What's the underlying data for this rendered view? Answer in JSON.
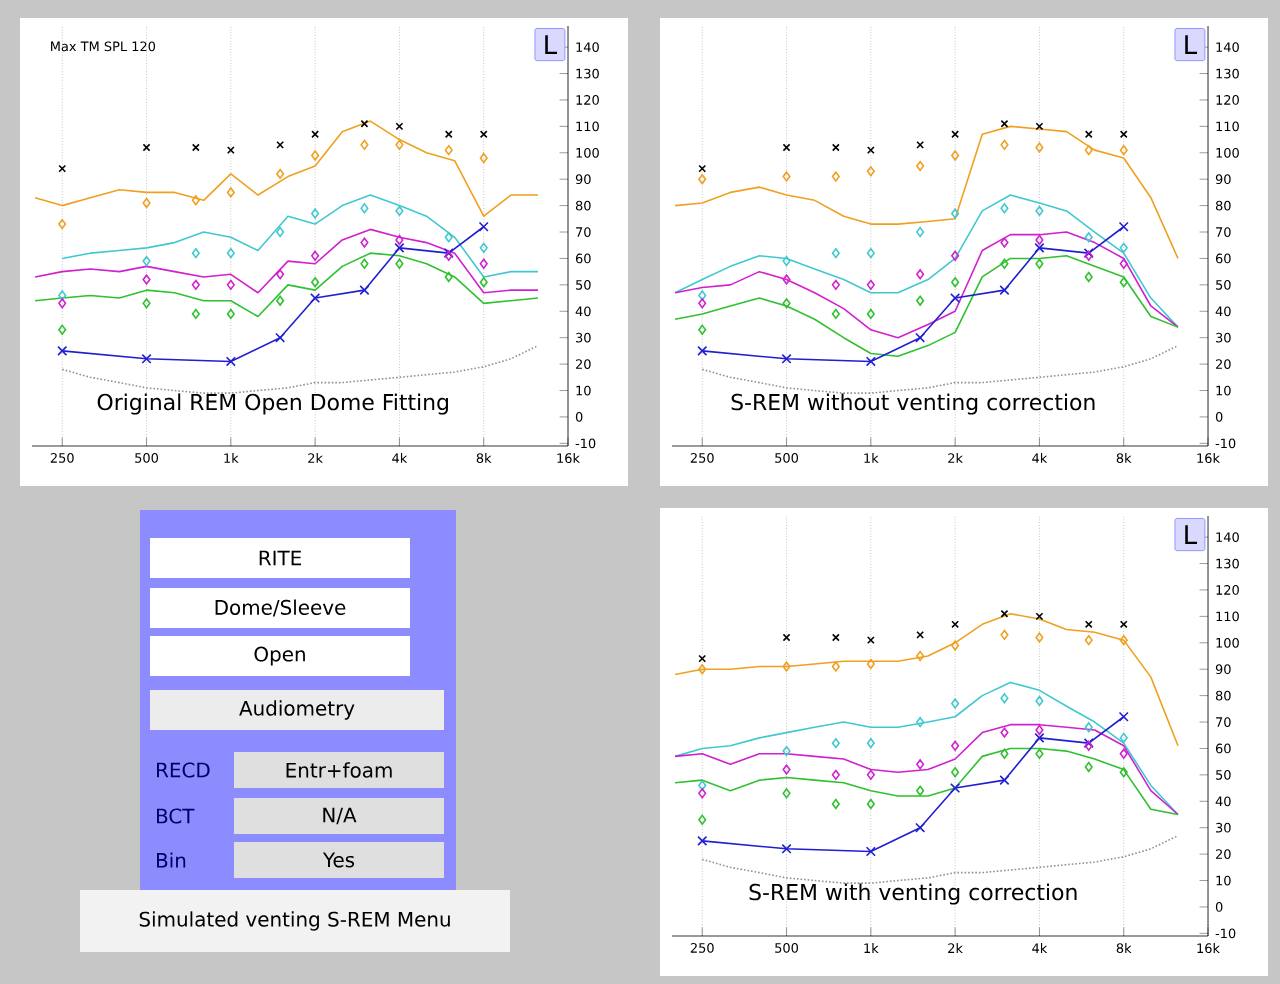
{
  "chart_data": [
    {
      "type": "line",
      "title": "Original REM Open Dome Fitting",
      "subtitle": "Max TM SPL 120",
      "annotations": [
        "L"
      ],
      "xlim": [
        195,
        16000
      ],
      "ylim": [
        -11,
        148
      ],
      "log": "x",
      "grid": "x",
      "xticks": [
        {
          "value": 250,
          "label": "250"
        },
        {
          "value": 500,
          "label": "500"
        },
        {
          "value": 1000,
          "label": "1k"
        },
        {
          "value": 2000,
          "label": "2k"
        },
        {
          "value": 4000,
          "label": "4k"
        },
        {
          "value": 8000,
          "label": "8k"
        },
        {
          "value": 16000,
          "label": "16k"
        }
      ],
      "yticks": [
        -10,
        0,
        10,
        20,
        30,
        40,
        50,
        60,
        70,
        80,
        90,
        100,
        110,
        120,
        130,
        140
      ],
      "x": [
        200,
        250,
        315,
        400,
        500,
        630,
        800,
        1000,
        1250,
        1600,
        2000,
        2500,
        3150,
        4000,
        5000,
        6300,
        8000,
        10000,
        12500
      ],
      "series": [
        {
          "color": "#909090",
          "line_style": "dotted",
          "x": [
            250,
            315,
            400,
            500,
            630,
            800,
            1000,
            1250,
            1600,
            2000,
            2500,
            3150,
            4000,
            5000,
            6300,
            8000,
            10000,
            12500
          ],
          "values": [
            18,
            15,
            13,
            11,
            10,
            9,
            9,
            10,
            11,
            13,
            13,
            14,
            15,
            16,
            17,
            19,
            22,
            27
          ]
        },
        {
          "color": "#f0a020",
          "values": [
            83,
            80,
            83,
            86,
            85,
            85,
            82,
            92,
            84,
            91,
            95,
            108,
            112,
            105,
            100,
            97,
            76,
            84,
            84
          ]
        },
        {
          "color": "#40c8d0",
          "values": [
            null,
            60,
            62,
            63,
            64,
            66,
            70,
            68,
            63,
            76,
            73,
            80,
            84,
            80,
            76,
            68,
            53,
            55,
            55
          ]
        },
        {
          "color": "#d020d0",
          "values": [
            53,
            55,
            56,
            55,
            57,
            55,
            53,
            54,
            47,
            59,
            58,
            67,
            71,
            68,
            66,
            62,
            47,
            48,
            48
          ]
        },
        {
          "color": "#30c030",
          "values": [
            44,
            45,
            46,
            45,
            48,
            47,
            44,
            44,
            38,
            50,
            48,
            57,
            62,
            61,
            58,
            53,
            43,
            44,
            45
          ]
        },
        {
          "color": "#2020d0",
          "marker": "cross",
          "x": [
            250,
            500,
            1000,
            1500,
            2000,
            3000,
            4000,
            6000,
            8000
          ],
          "values": [
            25,
            22,
            21,
            30,
            45,
            48,
            64,
            62,
            72
          ]
        },
        {
          "type": "scatter",
          "color": "#000000",
          "marker": "cross",
          "x": [
            250,
            500,
            750,
            1000,
            1500,
            2000,
            3000,
            4000,
            6000,
            8000
          ],
          "values": [
            94,
            102,
            102,
            101,
            103,
            107,
            111,
            110,
            107,
            107
          ]
        },
        {
          "type": "scatter",
          "color": "#f0a020",
          "marker": "diamond",
          "x": [
            250,
            500,
            750,
            1000,
            1500,
            2000,
            3000,
            4000,
            6000,
            8000
          ],
          "values": [
            73,
            81,
            82,
            85,
            92,
            99,
            103,
            103,
            101,
            98
          ]
        },
        {
          "type": "scatter",
          "color": "#40c8d0",
          "marker": "diamond",
          "x": [
            250,
            500,
            750,
            1000,
            1500,
            2000,
            3000,
            4000,
            6000,
            8000
          ],
          "values": [
            46,
            59,
            62,
            62,
            70,
            77,
            79,
            78,
            68,
            64
          ]
        },
        {
          "type": "scatter",
          "color": "#d020d0",
          "marker": "diamond",
          "x": [
            250,
            500,
            750,
            1000,
            1500,
            2000,
            3000,
            4000,
            6000,
            8000
          ],
          "values": [
            43,
            52,
            50,
            50,
            54,
            61,
            66,
            67,
            61,
            58
          ]
        },
        {
          "type": "scatter",
          "color": "#30c030",
          "marker": "diamond",
          "x": [
            250,
            500,
            750,
            1000,
            1500,
            2000,
            3000,
            4000,
            6000,
            8000
          ],
          "values": [
            33,
            43,
            39,
            39,
            44,
            51,
            58,
            58,
            53,
            51
          ]
        }
      ]
    },
    {
      "type": "line",
      "title": "S-REM without venting correction",
      "annotations": [
        "L"
      ],
      "xlim": [
        195,
        16000
      ],
      "ylim": [
        -11,
        148
      ],
      "log": "x",
      "grid": "x",
      "xticks": [
        {
          "value": 250,
          "label": "250"
        },
        {
          "value": 500,
          "label": "500"
        },
        {
          "value": 1000,
          "label": "1k"
        },
        {
          "value": 2000,
          "label": "2k"
        },
        {
          "value": 4000,
          "label": "4k"
        },
        {
          "value": 8000,
          "label": "8k"
        },
        {
          "value": 16000,
          "label": "16k"
        }
      ],
      "yticks": [
        -10,
        0,
        10,
        20,
        30,
        40,
        50,
        60,
        70,
        80,
        90,
        100,
        110,
        120,
        130,
        140
      ],
      "x": [
        200,
        250,
        315,
        400,
        500,
        630,
        800,
        1000,
        1250,
        1600,
        2000,
        2500,
        3150,
        4000,
        5000,
        6300,
        8000,
        10000,
        12500
      ],
      "series": [
        {
          "color": "#909090",
          "line_style": "dotted",
          "x": [
            250,
            315,
            400,
            500,
            630,
            800,
            1000,
            1250,
            1600,
            2000,
            2500,
            3150,
            4000,
            5000,
            6300,
            8000,
            10000,
            12500
          ],
          "values": [
            18,
            15,
            13,
            11,
            10,
            9,
            9,
            10,
            11,
            13,
            13,
            14,
            15,
            16,
            17,
            19,
            22,
            27
          ]
        },
        {
          "color": "#f0a020",
          "values": [
            80,
            81,
            85,
            87,
            84,
            82,
            76,
            73,
            73,
            74,
            75,
            107,
            110,
            109,
            108,
            101,
            98,
            83,
            60
          ]
        },
        {
          "color": "#40c8d0",
          "values": [
            47,
            52,
            57,
            61,
            60,
            56,
            52,
            47,
            47,
            52,
            60,
            78,
            84,
            81,
            78,
            70,
            62,
            45,
            34
          ]
        },
        {
          "color": "#d020d0",
          "values": [
            47,
            49,
            50,
            55,
            52,
            47,
            41,
            33,
            30,
            35,
            40,
            63,
            69,
            69,
            70,
            66,
            60,
            42,
            34
          ]
        },
        {
          "color": "#30c030",
          "values": [
            37,
            39,
            42,
            45,
            42,
            37,
            30,
            24,
            23,
            27,
            32,
            53,
            60,
            60,
            61,
            57,
            53,
            38,
            34
          ]
        },
        {
          "color": "#2020d0",
          "marker": "cross",
          "x": [
            250,
            500,
            1000,
            1500,
            2000,
            3000,
            4000,
            6000,
            8000
          ],
          "values": [
            25,
            22,
            21,
            30,
            45,
            48,
            64,
            62,
            72
          ]
        },
        {
          "type": "scatter",
          "color": "#000000",
          "marker": "cross",
          "x": [
            250,
            500,
            750,
            1000,
            1500,
            2000,
            3000,
            4000,
            6000,
            8000
          ],
          "values": [
            94,
            102,
            102,
            101,
            103,
            107,
            111,
            110,
            107,
            107
          ]
        },
        {
          "type": "scatter",
          "color": "#f0a020",
          "marker": "diamond",
          "x": [
            250,
            500,
            750,
            1000,
            1500,
            2000,
            3000,
            4000,
            6000,
            8000
          ],
          "values": [
            90,
            91,
            91,
            93,
            95,
            99,
            103,
            102,
            101,
            101
          ]
        },
        {
          "type": "scatter",
          "color": "#40c8d0",
          "marker": "diamond",
          "x": [
            250,
            500,
            750,
            1000,
            1500,
            2000,
            3000,
            4000,
            6000,
            8000
          ],
          "values": [
            46,
            59,
            62,
            62,
            70,
            77,
            79,
            78,
            68,
            64
          ]
        },
        {
          "type": "scatter",
          "color": "#d020d0",
          "marker": "diamond",
          "x": [
            250,
            500,
            750,
            1000,
            1500,
            2000,
            3000,
            4000,
            6000,
            8000
          ],
          "values": [
            43,
            52,
            50,
            50,
            54,
            61,
            66,
            67,
            61,
            58
          ]
        },
        {
          "type": "scatter",
          "color": "#30c030",
          "marker": "diamond",
          "x": [
            250,
            500,
            750,
            1000,
            1500,
            2000,
            3000,
            4000,
            6000,
            8000
          ],
          "values": [
            33,
            43,
            39,
            39,
            44,
            51,
            58,
            58,
            53,
            51
          ]
        }
      ]
    },
    {
      "type": "other",
      "title": "Simulated venting S-REM Menu",
      "annotations": [
        "RITE",
        "Dome/Sleeve",
        "Open",
        "Audiometry",
        "RECD",
        "Entr+foam",
        "BCT",
        "N/A",
        "Bin",
        "Yes"
      ]
    },
    {
      "type": "line",
      "title": "S-REM with venting correction",
      "annotations": [
        "L"
      ],
      "xlim": [
        195,
        16000
      ],
      "ylim": [
        -11,
        148
      ],
      "log": "x",
      "grid": "x",
      "xticks": [
        {
          "value": 250,
          "label": "250"
        },
        {
          "value": 500,
          "label": "500"
        },
        {
          "value": 1000,
          "label": "1k"
        },
        {
          "value": 2000,
          "label": "2k"
        },
        {
          "value": 4000,
          "label": "4k"
        },
        {
          "value": 8000,
          "label": "8k"
        },
        {
          "value": 16000,
          "label": "16k"
        }
      ],
      "yticks": [
        -10,
        0,
        10,
        20,
        30,
        40,
        50,
        60,
        70,
        80,
        90,
        100,
        110,
        120,
        130,
        140
      ],
      "x": [
        200,
        250,
        315,
        400,
        500,
        630,
        800,
        1000,
        1250,
        1600,
        2000,
        2500,
        3150,
        4000,
        5000,
        6300,
        8000,
        10000,
        12500
      ],
      "series": [
        {
          "color": "#909090",
          "line_style": "dotted",
          "x": [
            250,
            315,
            400,
            500,
            630,
            800,
            1000,
            1250,
            1600,
            2000,
            2500,
            3150,
            4000,
            5000,
            6300,
            8000,
            10000,
            12500
          ],
          "values": [
            18,
            15,
            13,
            11,
            10,
            9,
            9,
            10,
            11,
            13,
            13,
            14,
            15,
            16,
            17,
            19,
            22,
            27
          ]
        },
        {
          "color": "#f0a020",
          "values": [
            88,
            90,
            90,
            91,
            91,
            92,
            93,
            93,
            93,
            95,
            100,
            107,
            111,
            109,
            105,
            104,
            101,
            87,
            61
          ]
        },
        {
          "color": "#40c8d0",
          "values": [
            57,
            60,
            61,
            64,
            66,
            68,
            70,
            68,
            68,
            70,
            72,
            80,
            85,
            82,
            76,
            70,
            62,
            46,
            35
          ]
        },
        {
          "color": "#d020d0",
          "values": [
            57,
            58,
            54,
            58,
            58,
            57,
            56,
            52,
            51,
            52,
            56,
            66,
            69,
            69,
            68,
            67,
            61,
            44,
            35
          ]
        },
        {
          "color": "#30c030",
          "values": [
            47,
            48,
            44,
            48,
            49,
            48,
            47,
            44,
            42,
            42,
            45,
            57,
            60,
            60,
            59,
            56,
            52,
            37,
            35
          ]
        },
        {
          "color": "#2020d0",
          "marker": "cross",
          "x": [
            250,
            500,
            1000,
            1500,
            2000,
            3000,
            4000,
            6000,
            8000
          ],
          "values": [
            25,
            22,
            21,
            30,
            45,
            48,
            64,
            62,
            72
          ]
        },
        {
          "type": "scatter",
          "color": "#000000",
          "marker": "cross",
          "x": [
            250,
            500,
            750,
            1000,
            1500,
            2000,
            3000,
            4000,
            6000,
            8000
          ],
          "values": [
            94,
            102,
            102,
            101,
            103,
            107,
            111,
            110,
            107,
            107
          ]
        },
        {
          "type": "scatter",
          "color": "#f0a020",
          "marker": "diamond",
          "x": [
            250,
            500,
            750,
            1000,
            1500,
            2000,
            3000,
            4000,
            6000,
            8000
          ],
          "values": [
            90,
            91,
            91,
            92,
            95,
            99,
            103,
            102,
            101,
            101
          ]
        },
        {
          "type": "scatter",
          "color": "#40c8d0",
          "marker": "diamond",
          "x": [
            250,
            500,
            750,
            1000,
            1500,
            2000,
            3000,
            4000,
            6000,
            8000
          ],
          "values": [
            46,
            59,
            62,
            62,
            70,
            77,
            79,
            78,
            68,
            64
          ]
        },
        {
          "type": "scatter",
          "color": "#d020d0",
          "marker": "diamond",
          "x": [
            250,
            500,
            750,
            1000,
            1500,
            2000,
            3000,
            4000,
            6000,
            8000
          ],
          "values": [
            43,
            52,
            50,
            50,
            54,
            61,
            66,
            67,
            61,
            58
          ]
        },
        {
          "type": "scatter",
          "color": "#30c030",
          "marker": "diamond",
          "x": [
            250,
            500,
            750,
            1000,
            1500,
            2000,
            3000,
            4000,
            6000,
            8000
          ],
          "values": [
            33,
            43,
            39,
            39,
            44,
            51,
            58,
            58,
            53,
            51
          ]
        }
      ]
    }
  ]
}
